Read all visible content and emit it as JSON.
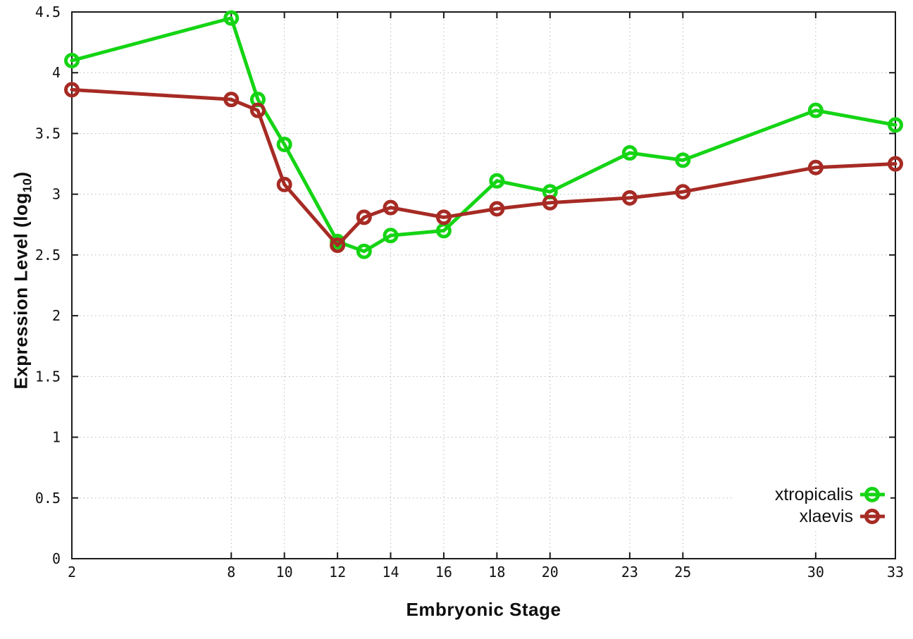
{
  "chart_data": {
    "type": "line",
    "title": "",
    "xlabel": "Embryonic Stage",
    "ylabel": "Expression Level (log10)",
    "ylabel_parts": {
      "prefix": "Expression Level (log",
      "sub": "10",
      "suffix": ")"
    },
    "xlim": [
      2,
      33
    ],
    "ylim": [
      0,
      4.5
    ],
    "grid": true,
    "legend_position": "bottom-right",
    "x": [
      2,
      8,
      9,
      10,
      12,
      13,
      14,
      16,
      18,
      20,
      23,
      25,
      30,
      33
    ],
    "xtick_labels": [
      "2",
      "8",
      "10",
      "12",
      "14",
      "16",
      "18",
      "20",
      "23",
      "25",
      "30",
      "33"
    ],
    "ytick_labels": [
      "0",
      "0.5",
      "1",
      "1.5",
      "2",
      "2.5",
      "3",
      "3.5",
      "4",
      "4.5"
    ],
    "series": [
      {
        "name": "xtropicalis",
        "color": "#15d415",
        "marker": "open-circle",
        "values": [
          4.1,
          4.45,
          3.78,
          3.41,
          2.61,
          2.53,
          2.66,
          2.7,
          3.11,
          3.02,
          3.34,
          3.28,
          3.69,
          3.57
        ]
      },
      {
        "name": "xlaevis",
        "color": "#a62b24",
        "marker": "open-circle",
        "values": [
          3.86,
          3.78,
          3.69,
          3.08,
          2.58,
          2.81,
          2.89,
          2.81,
          2.88,
          2.93,
          2.97,
          3.02,
          3.22,
          3.25
        ]
      }
    ],
    "style": {
      "background": "#ffffff",
      "axis_color": "#1b1b1b",
      "grid_color": "#b3b9be",
      "text_color": "#111111"
    }
  }
}
